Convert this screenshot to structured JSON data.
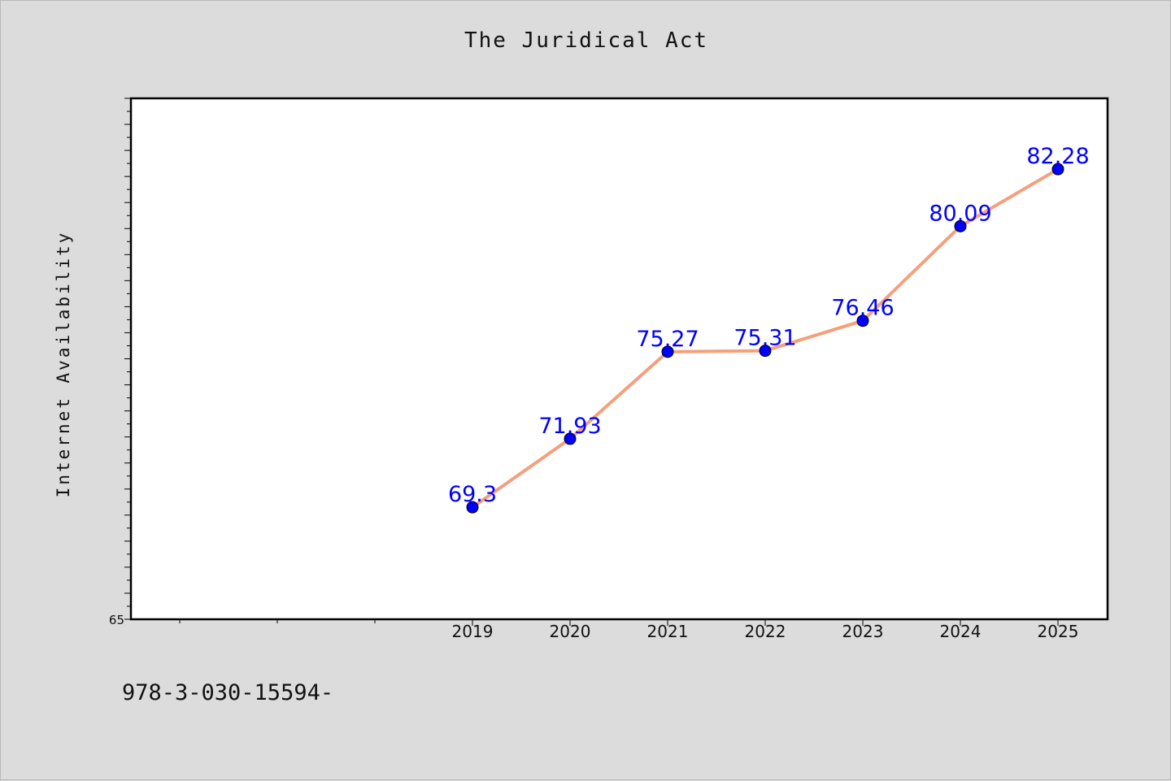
{
  "title": "The Juridical Act",
  "footnote": "978-3-030-15594-",
  "chart_data": {
    "type": "line",
    "title": "The Juridical Act",
    "xlabel": "",
    "ylabel": "Internet Availability",
    "categories": [
      "2019",
      "2020",
      "2021",
      "2022",
      "2023",
      "2024",
      "2025"
    ],
    "series": [
      {
        "values": [
          69.3,
          71.93,
          75.27,
          75.31,
          76.46,
          80.09,
          82.28
        ],
        "labels": [
          "69.3",
          "71.93",
          "75.27",
          "75.31",
          "76.46",
          "80.09",
          "82.28"
        ],
        "line_color": "#f4a07c",
        "marker_color": "#0000ff"
      }
    ],
    "ylim": [
      65,
      85
    ],
    "y_tick_labels": [
      "65"
    ],
    "grid": false,
    "legend": "none"
  }
}
